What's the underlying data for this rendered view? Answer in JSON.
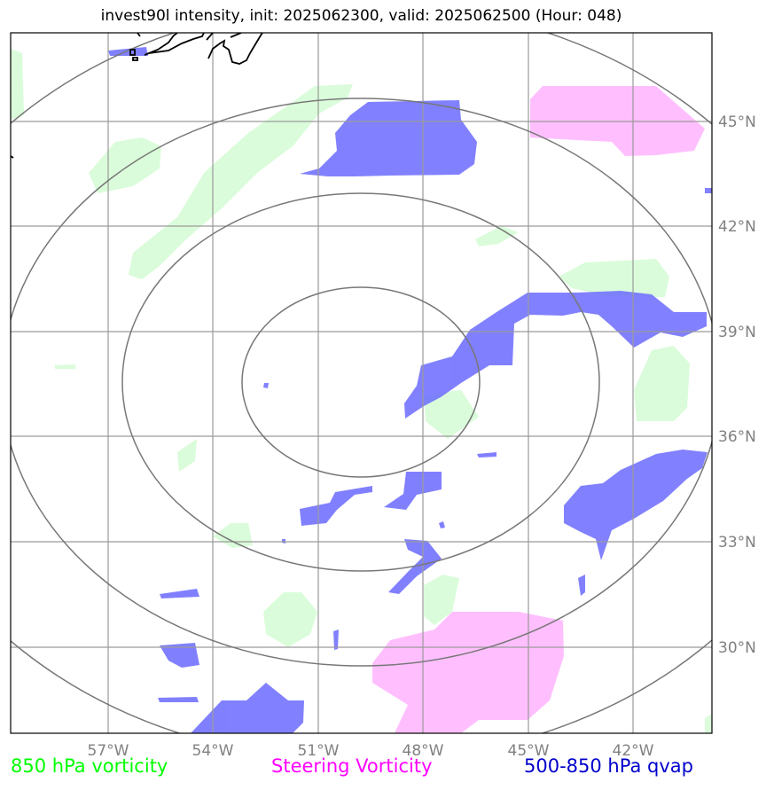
{
  "header": {
    "title": "invest90l intensity, init: 2025062300, valid: 2025062500 (Hour: 048)"
  },
  "map": {
    "lon_labels": [
      "57°W",
      "54°W",
      "51°W",
      "48°W",
      "45°W",
      "42°W"
    ],
    "lat_labels": [
      "45°N",
      "42°N",
      "39°N",
      "36°N",
      "33°N",
      "30°N"
    ],
    "colors": {
      "vorticity_850": "#d6fcd6",
      "steering_vorticity": "#ffb8ff",
      "qvap": "#6b6bff",
      "gridlines": "#9a9a9a",
      "range_rings": "#777777",
      "coastline": "#000000"
    }
  },
  "legend": {
    "vorticity_850": {
      "label": "850 hPa vorticity",
      "color": "#00ff00"
    },
    "steering": {
      "label": "Steering Vorticity",
      "color": "#ff00ff"
    },
    "qvap": {
      "label": "500-850 hPa qvap",
      "color": "#0000cc"
    }
  }
}
